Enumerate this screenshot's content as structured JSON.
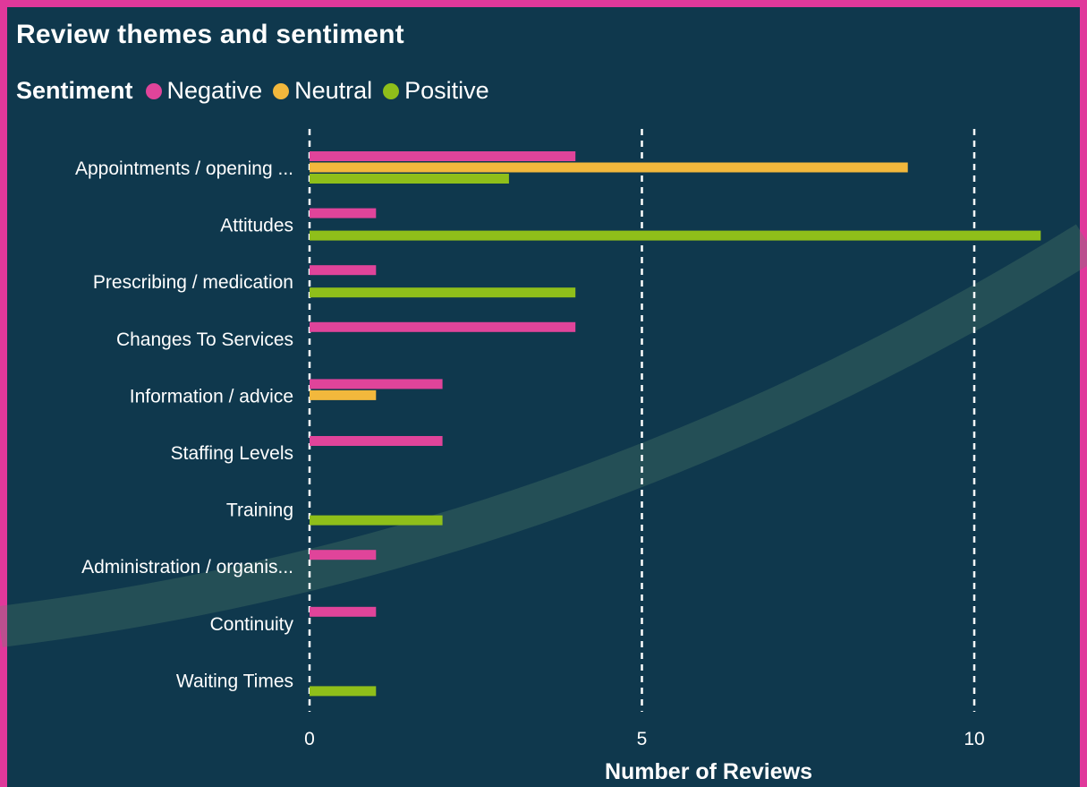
{
  "chart_data": {
    "type": "bar",
    "orientation": "horizontal",
    "title": "Review themes and sentiment",
    "legend_title": "Sentiment",
    "legend_position": "top-left",
    "xlabel": "Number of Reviews",
    "ylabel": "",
    "xlim": [
      0,
      11.5
    ],
    "xticks": [
      0,
      5,
      10
    ],
    "grid": "vertical dashed",
    "categories": [
      "Appointments / opening ...",
      "Attitudes",
      "Prescribing / medication",
      "Changes To Services",
      "Information / advice",
      "Staffing Levels",
      "Training",
      "Administration / organis...",
      "Continuity",
      "Waiting Times"
    ],
    "series": [
      {
        "name": "Negative",
        "color": "#e0449a",
        "values": [
          4,
          1,
          1,
          4,
          2,
          2,
          0,
          1,
          1,
          0
        ]
      },
      {
        "name": "Neutral",
        "color": "#f2b83c",
        "values": [
          9,
          0,
          0,
          0,
          1,
          0,
          0,
          0,
          0,
          0
        ]
      },
      {
        "name": "Positive",
        "color": "#8fbf1a",
        "values": [
          3,
          11,
          4,
          0,
          0,
          0,
          2,
          0,
          0,
          1
        ]
      }
    ]
  }
}
